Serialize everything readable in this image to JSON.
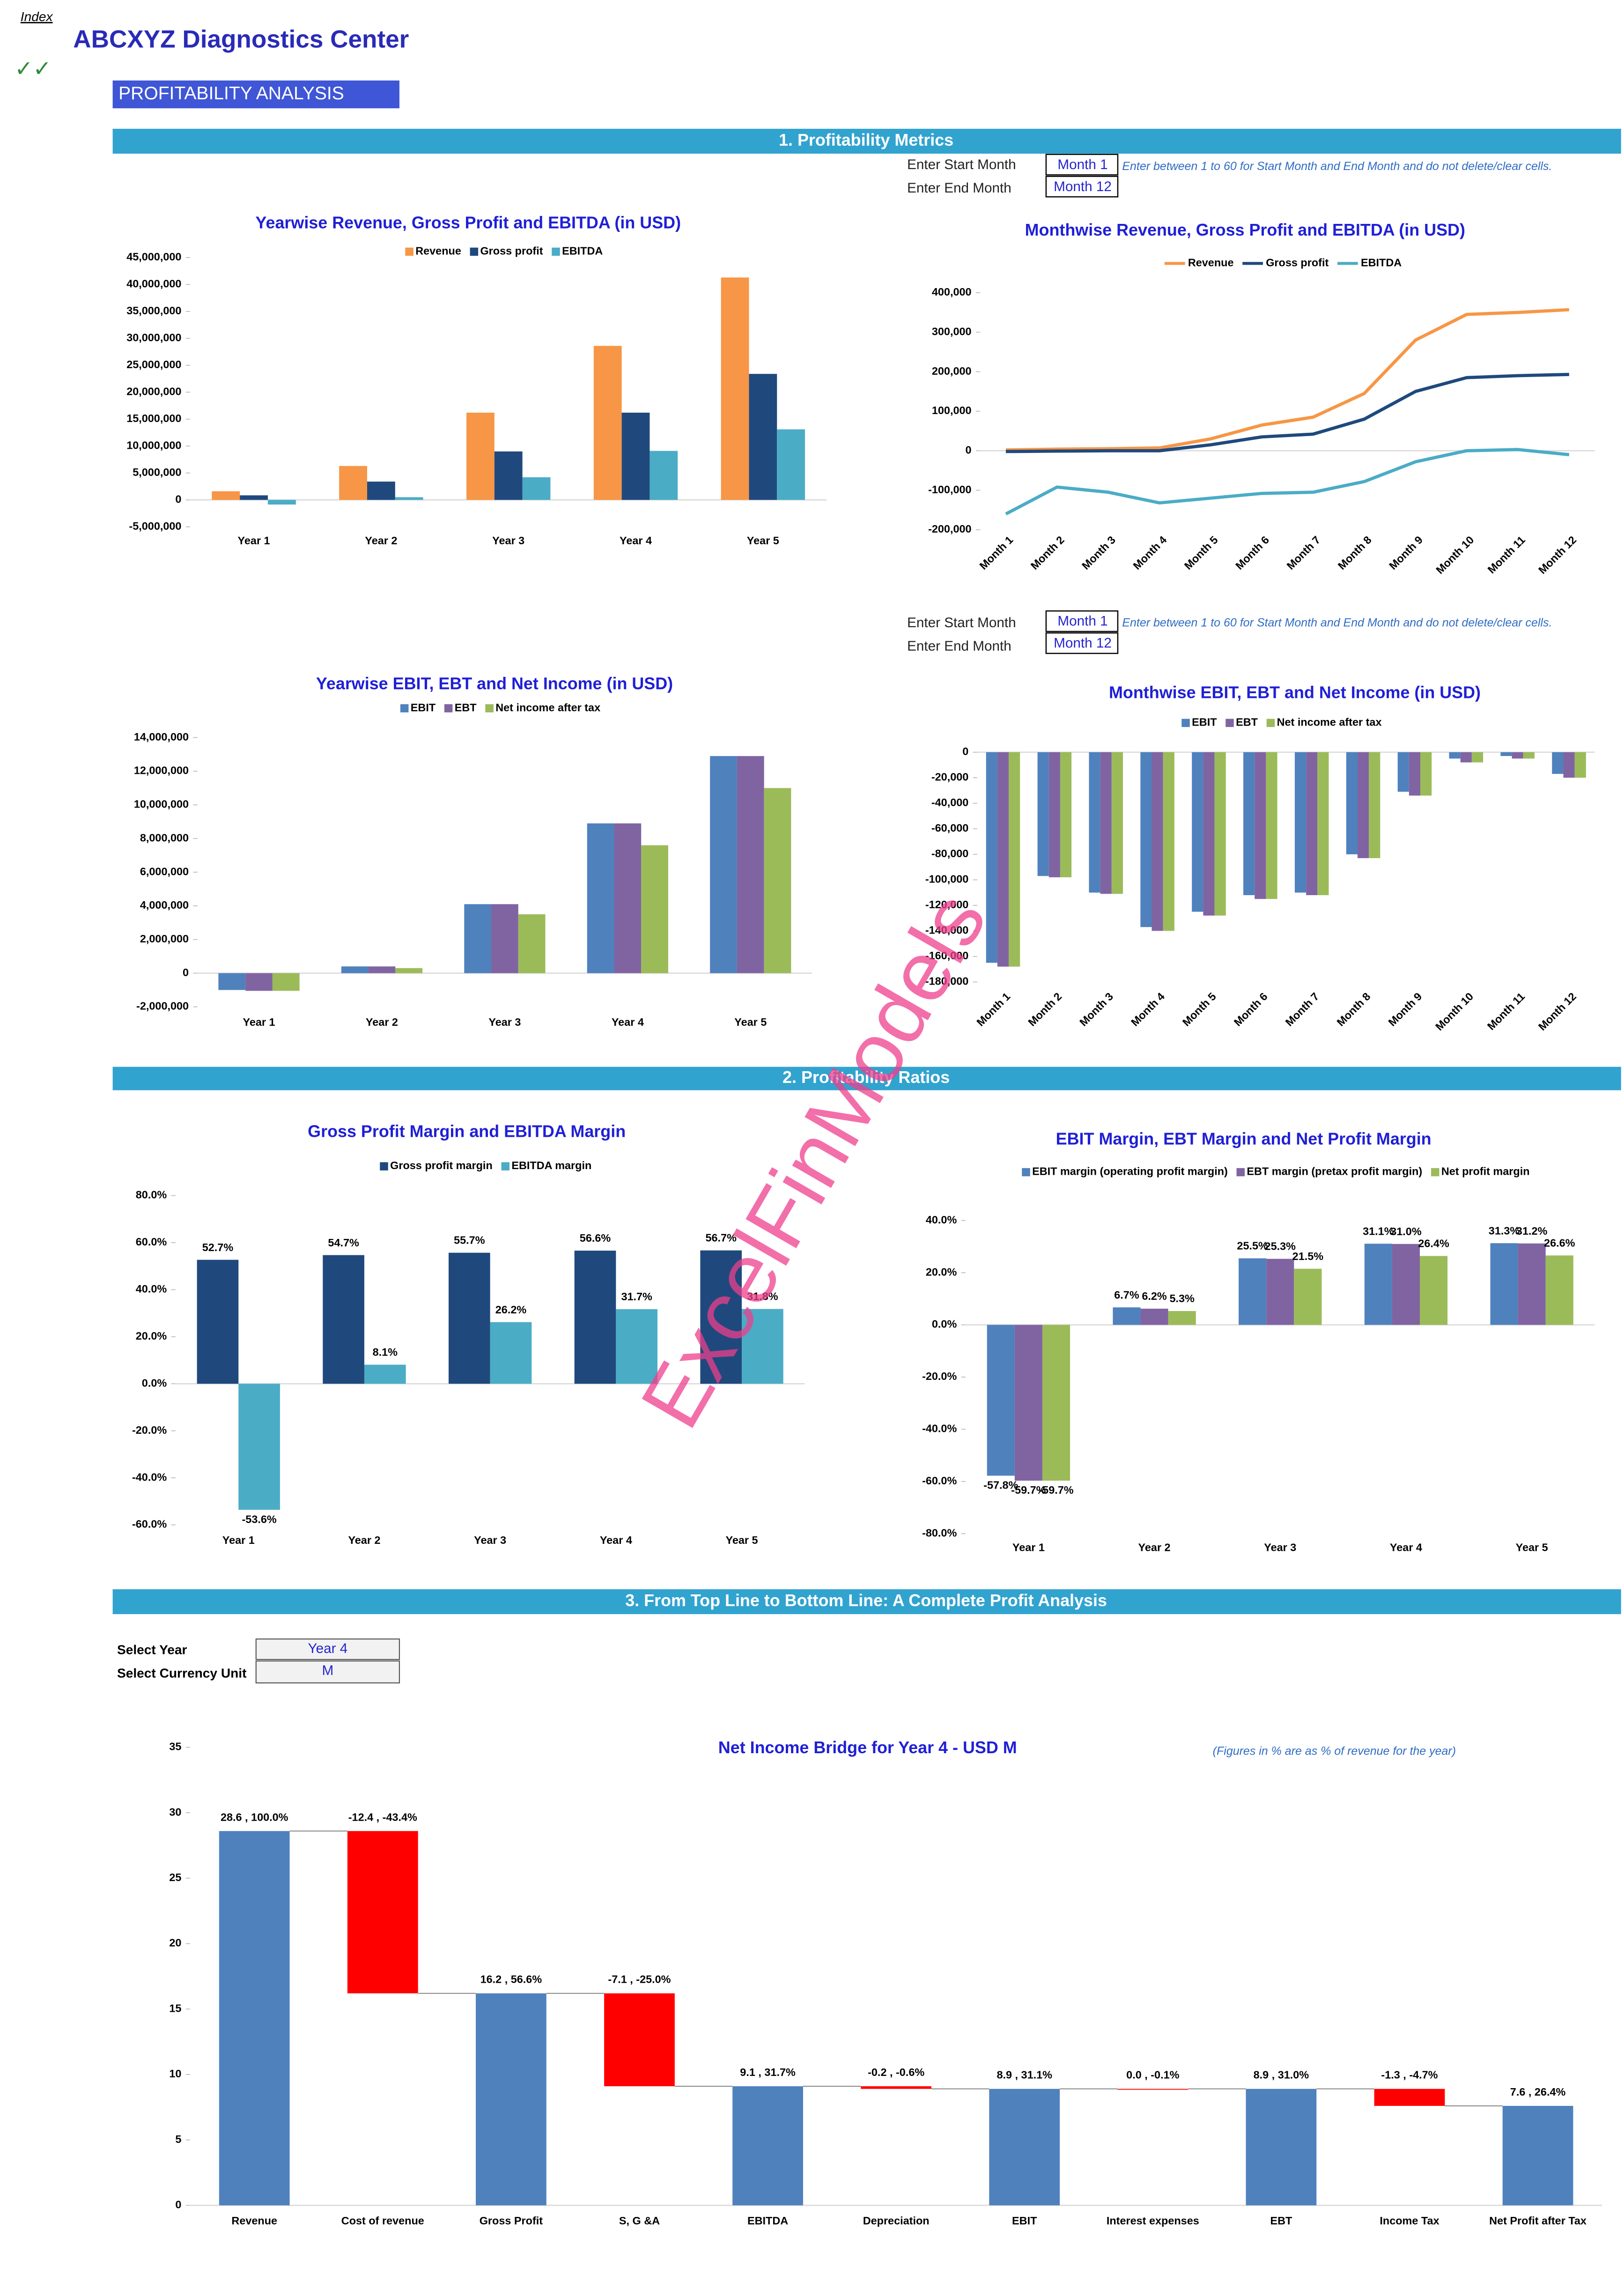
{
  "header": {
    "index": "Index",
    "title": "ABCXYZ Diagnostics Center",
    "checkmarks": "✓✓",
    "page_title": "PROFITABILITY ANALYSIS"
  },
  "sections": [
    "1. Profitability Metrics",
    "2. Profitability Ratios",
    "3. From Top Line to Bottom Line: A Complete Profit Analysis"
  ],
  "inputs": {
    "start_label": "Enter Start Month",
    "end_label": "Enter End Month",
    "start_value": "Month 1",
    "end_value": "Month 12",
    "note": "Enter between 1 to 60 for Start Month and End Month and do not delete/clear cells."
  },
  "selectors": {
    "year_label": "Select Year",
    "year": "Year 4",
    "unit_label": "Select Currency Unit",
    "unit": "M"
  },
  "watermark": "ExcelFinModels",
  "chart_data": [
    {
      "type": "bar",
      "title": "Yearwise Revenue, Gross Profit and EBITDA (in USD)",
      "categories": [
        "Year 1",
        "Year 2",
        "Year 3",
        "Year 4",
        "Year 5"
      ],
      "series": [
        {
          "name": "Revenue",
          "color": "#f79646",
          "values": [
            1600000,
            6300000,
            16200000,
            28600000,
            41300000
          ]
        },
        {
          "name": "Gross profit",
          "color": "#1f497d",
          "values": [
            850000,
            3400000,
            9000000,
            16200000,
            23400000
          ]
        },
        {
          "name": "EBITDA",
          "color": "#4bacc6",
          "values": [
            -860000,
            500000,
            4200000,
            9100000,
            13100000
          ]
        }
      ],
      "ylim": [
        -5000000,
        45000000
      ],
      "yticks": [
        {
          "value": -5000000,
          "label": "-5,000,000"
        },
        0,
        {
          "value": 5000000,
          "label": "5,000,000"
        },
        {
          "value": 10000000,
          "label": "10,000,000"
        },
        {
          "value": 15000000,
          "label": "15,000,000"
        },
        {
          "value": 20000000,
          "label": "20,000,000"
        },
        {
          "value": 25000000,
          "label": "25,000,000"
        },
        {
          "value": 30000000,
          "label": "30,000,000"
        },
        {
          "value": 35000000,
          "label": "35,000,000"
        },
        {
          "value": 40000000,
          "label": "40,000,000"
        },
        {
          "value": 45000000,
          "label": "45,000,000"
        }
      ],
      "grid": false,
      "legend": "top"
    },
    {
      "type": "line",
      "title": "Monthwise Revenue, Gross Profit and EBITDA (in USD)",
      "categories": [
        "Month 1",
        "Month 2",
        "Month 3",
        "Month 4",
        "Month 5",
        "Month 6",
        "Month 7",
        "Month 8",
        "Month 9",
        "Month 10",
        "Month 11",
        "Month 12"
      ],
      "series": [
        {
          "name": "Revenue",
          "color": "#f79646",
          "values": [
            2000,
            4000,
            5000,
            7000,
            30000,
            65000,
            85000,
            145000,
            280000,
            345000,
            350000,
            357000
          ]
        },
        {
          "name": "Gross profit",
          "color": "#1f497d",
          "values": [
            -2000,
            -1000,
            0,
            0,
            15000,
            35000,
            42000,
            80000,
            150000,
            185000,
            190000,
            193000
          ]
        },
        {
          "name": "EBITDA",
          "color": "#4bacc6",
          "values": [
            -160000,
            -92000,
            -105000,
            -132000,
            -120000,
            -108000,
            -105000,
            -78000,
            -28000,
            0,
            3000,
            -10000
          ]
        }
      ],
      "ylim": [
        -200000,
        400000
      ],
      "yticks": [
        {
          "value": -200000,
          "label": "-200,000"
        },
        {
          "value": -100000,
          "label": "-100,000"
        },
        0,
        {
          "value": 100000,
          "label": "100,000"
        },
        {
          "value": 200000,
          "label": "200,000"
        },
        {
          "value": 300000,
          "label": "300,000"
        },
        {
          "value": 400000,
          "label": "400,000"
        }
      ],
      "grid": false,
      "legend": "top"
    },
    {
      "type": "bar",
      "title": "Yearwise EBIT, EBT and Net Income (in USD)",
      "categories": [
        "Year 1",
        "Year 2",
        "Year 3",
        "Year 4",
        "Year 5"
      ],
      "series": [
        {
          "name": "EBIT",
          "color": "#4f81bd",
          "values": [
            -1000000,
            400000,
            4100000,
            8900000,
            12900000
          ]
        },
        {
          "name": "EBT",
          "color": "#8064a2",
          "values": [
            -1050000,
            400000,
            4100000,
            8900000,
            12900000
          ]
        },
        {
          "name": "Net income after tax",
          "color": "#9bbb59",
          "values": [
            -1050000,
            300000,
            3500000,
            7600000,
            11000000
          ]
        }
      ],
      "ylim": [
        -2000000,
        14000000
      ],
      "yticks": [
        {
          "value": -2000000,
          "label": "-2,000,000"
        },
        0,
        {
          "value": 2000000,
          "label": "2,000,000"
        },
        {
          "value": 4000000,
          "label": "4,000,000"
        },
        {
          "value": 6000000,
          "label": "6,000,000"
        },
        {
          "value": 8000000,
          "label": "8,000,000"
        },
        {
          "value": 10000000,
          "label": "10,000,000"
        },
        {
          "value": 12000000,
          "label": "12,000,000"
        },
        {
          "value": 14000000,
          "label": "14,000,000"
        }
      ],
      "grid": false,
      "legend": "top"
    },
    {
      "type": "bar",
      "title": "Monthwise EBIT, EBT and Net Income (in USD)",
      "categories": [
        "Month 1",
        "Month 2",
        "Month 3",
        "Month 4",
        "Month 5",
        "Month 6",
        "Month 7",
        "Month 8",
        "Month 9",
        "Month 10",
        "Month 11",
        "Month 12"
      ],
      "series": [
        {
          "name": "EBIT",
          "color": "#4f81bd",
          "values": [
            -165000,
            -97000,
            -110000,
            -137000,
            -125000,
            -112000,
            -110000,
            -80000,
            -31000,
            -5000,
            -3000,
            -17000
          ]
        },
        {
          "name": "EBT",
          "color": "#8064a2",
          "values": [
            -168000,
            -98000,
            -111000,
            -140000,
            -128000,
            -115000,
            -112000,
            -83000,
            -34000,
            -8000,
            -5000,
            -20000
          ]
        },
        {
          "name": "Net income after tax",
          "color": "#9bbb59",
          "values": [
            -168000,
            -98000,
            -111000,
            -140000,
            -128000,
            -115000,
            -112000,
            -83000,
            -34000,
            -8000,
            -5000,
            -20000
          ]
        }
      ],
      "ylim": [
        -180000,
        0
      ],
      "yticks": [
        {
          "value": -180000,
          "label": "-180,000"
        },
        {
          "value": -160000,
          "label": "-160,000"
        },
        {
          "value": -140000,
          "label": "-140,000"
        },
        {
          "value": -120000,
          "label": "-120,000"
        },
        {
          "value": -100000,
          "label": "-100,000"
        },
        {
          "value": -80000,
          "label": "-80,000"
        },
        {
          "value": -60000,
          "label": "-60,000"
        },
        {
          "value": -40000,
          "label": "-40,000"
        },
        {
          "value": -20000,
          "label": "-20,000"
        },
        0
      ],
      "grid": false,
      "legend": "top"
    },
    {
      "type": "bar",
      "title": "Gross Profit Margin and  EBITDA Margin",
      "categories": [
        "Year 1",
        "Year 2",
        "Year 3",
        "Year 4",
        "Year 5"
      ],
      "series": [
        {
          "name": "Gross profit margin",
          "color": "#1f497d",
          "values": [
            52.7,
            54.7,
            55.7,
            56.6,
            56.7
          ],
          "value_labels": [
            "52.7%",
            "54.7%",
            "55.7%",
            "56.6%",
            "56.7%"
          ]
        },
        {
          "name": "EBITDA margin",
          "color": "#4bacc6",
          "values": [
            -53.6,
            8.1,
            26.2,
            31.7,
            31.8
          ],
          "value_labels": [
            "-53.6%",
            "8.1%",
            "26.2%",
            "31.7%",
            "31.8%"
          ]
        }
      ],
      "ylim": [
        -60,
        80
      ],
      "yticks": [
        {
          "value": -60,
          "label": "-60.0%"
        },
        {
          "value": -40,
          "label": "-40.0%"
        },
        {
          "value": -20,
          "label": "-20.0%"
        },
        {
          "value": 0,
          "label": "0.0%"
        },
        {
          "value": 20,
          "label": "20.0%"
        },
        {
          "value": 40,
          "label": "40.0%"
        },
        {
          "value": 60,
          "label": "60.0%"
        },
        {
          "value": 80,
          "label": "80.0%"
        }
      ],
      "grid": false,
      "legend": "top"
    },
    {
      "type": "bar",
      "title": "EBIT Margin, EBT Margin and Net Profit Margin",
      "categories": [
        "Year 1",
        "Year 2",
        "Year 3",
        "Year 4",
        "Year 5"
      ],
      "series": [
        {
          "name": "EBIT margin (operating profit margin)",
          "color": "#4f81bd",
          "values": [
            -57.8,
            6.7,
            25.5,
            31.1,
            31.3
          ],
          "value_labels": [
            "-57.8%",
            "6.7%",
            "25.5%",
            "31.1%",
            "31.3%"
          ]
        },
        {
          "name": "EBT margin (pretax profit margin)",
          "color": "#8064a2",
          "values": [
            -59.7,
            6.2,
            25.3,
            31.0,
            31.2
          ],
          "value_labels": [
            "-59.7%",
            "6.2%",
            "25.3%",
            "31.0%",
            "31.2%"
          ]
        },
        {
          "name": "Net profit margin",
          "color": "#9bbb59",
          "values": [
            -59.7,
            5.3,
            21.5,
            26.4,
            26.6
          ],
          "value_labels": [
            "-59.7%",
            "5.3%",
            "21.5%",
            "26.4%",
            "26.6%"
          ]
        }
      ],
      "ylim": [
        -80,
        40
      ],
      "yticks": [
        {
          "value": -80,
          "label": "-80.0%"
        },
        {
          "value": -60,
          "label": "-60.0%"
        },
        {
          "value": -40,
          "label": "-40.0%"
        },
        {
          "value": -20,
          "label": "-20.0%"
        },
        {
          "value": 0,
          "label": "0.0%"
        },
        {
          "value": 20,
          "label": "20.0%"
        },
        {
          "value": 40,
          "label": "40.0%"
        }
      ],
      "grid": false,
      "legend": "top"
    },
    {
      "type": "waterfall",
      "title": "Net Income Bridge for Year 4 - USD M",
      "note": "(Figures in % are as % of revenue for the year)",
      "categories": [
        "Revenue",
        "Cost of revenue",
        "Gross Profit",
        "S, G &A",
        "EBITDA",
        "Depreciation",
        "EBIT",
        "Interest expenses",
        "EBT",
        "Income Tax",
        "Net Profit after Tax"
      ],
      "values": [
        28.6,
        -12.4,
        16.2,
        -7.1,
        9.1,
        -0.2,
        8.9,
        0,
        8.9,
        -1.3,
        7.6
      ],
      "value_labels": [
        "28.6 , 100.0%",
        "-12.4 , -43.4%",
        "16.2 , 56.6%",
        "-7.1 , -25.0%",
        "9.1 , 31.7%",
        "-0.2 , -0.6%",
        "8.9 , 31.1%",
        "0.0 , -0.1%",
        "8.9 , 31.0%",
        "-1.3 , -4.7%",
        "7.6 , 26.4%"
      ],
      "measure": [
        "total",
        "delta",
        "total",
        "delta",
        "total",
        "delta",
        "total",
        "delta",
        "total",
        "delta",
        "total"
      ],
      "total_color": "#4f81bd",
      "delta_color": "#ff0000",
      "ylim": [
        0,
        35
      ],
      "yticks": [
        0,
        5,
        10,
        15,
        20,
        25,
        30,
        35
      ],
      "grid": false
    }
  ]
}
